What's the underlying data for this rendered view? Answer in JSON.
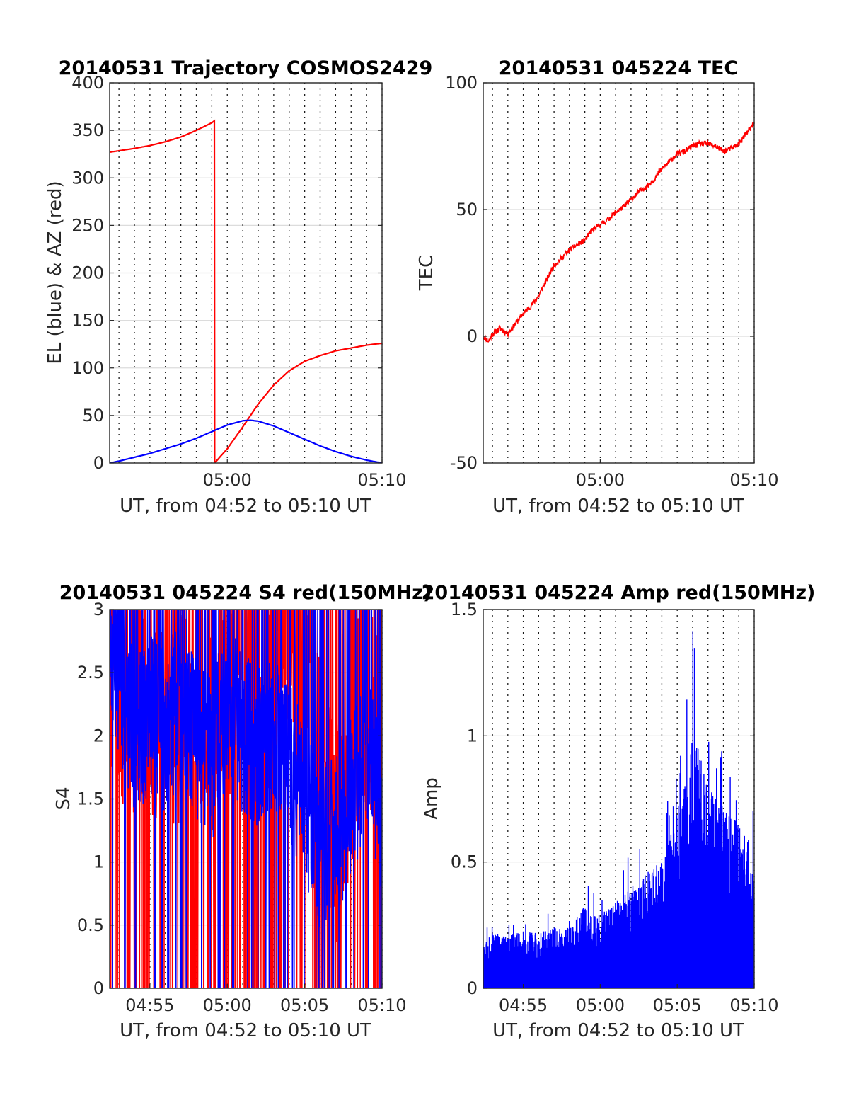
{
  "figure": {
    "x_range": [
      "04:52:24",
      "05:10:00"
    ],
    "minute_gridlines": true,
    "colors": {
      "red": "#ff0000",
      "blue": "#0000ff"
    }
  },
  "chart_data": [
    {
      "id": "trajectory",
      "type": "line",
      "title": "20140531 Trajectory COSMOS2429",
      "xlabel": "UT, from 04:52 to 05:10 UT",
      "ylabel": "EL (blue) & AZ (red)",
      "xlim": [
        "04:52:24",
        "05:10:00"
      ],
      "ylim": [
        0,
        400
      ],
      "yticks": [
        0,
        50,
        100,
        150,
        200,
        250,
        300,
        350,
        400
      ],
      "xticks": [
        "05:00",
        "05:10"
      ],
      "grid": "minor-dotted-vertical",
      "series": [
        {
          "color": "#ff0000",
          "x": [
            "04:52:24",
            "04:53:00",
            "04:54:00",
            "04:55:00",
            "04:56:00",
            "04:57:00",
            "04:58:00",
            "04:59:00",
            "04:59:10",
            "04:59:11",
            "05:00:00",
            "05:01:00",
            "05:02:00",
            "05:03:00",
            "05:04:00",
            "05:05:00",
            "05:06:00",
            "05:07:00",
            "05:08:00",
            "05:09:00",
            "05:10:00"
          ],
          "values": [
            327,
            328.5,
            331,
            334,
            338,
            343,
            350,
            358,
            360,
            0,
            15,
            38,
            62,
            82,
            97,
            107,
            113,
            118,
            121,
            124,
            126
          ]
        },
        {
          "color": "#0000ff",
          "x": [
            "04:52:24",
            "04:53:00",
            "04:54:00",
            "04:55:00",
            "04:56:00",
            "04:57:00",
            "04:58:00",
            "04:59:00",
            "05:00:00",
            "05:01:00",
            "05:01:30",
            "05:02:00",
            "05:03:00",
            "05:04:00",
            "05:05:00",
            "05:06:00",
            "05:07:00",
            "05:08:00",
            "05:09:00",
            "05:10:00"
          ],
          "values": [
            0,
            2,
            6,
            10,
            15,
            20,
            26,
            33,
            40,
            44.5,
            45,
            44,
            39,
            32,
            25,
            18,
            12,
            7,
            3,
            0
          ]
        }
      ]
    },
    {
      "id": "tec",
      "type": "line",
      "title": "20140531 045224 TEC",
      "xlabel": "UT, from 04:52 to 05:10 UT",
      "ylabel": "TEC",
      "xlim": [
        "04:52:24",
        "05:10:00"
      ],
      "ylim": [
        -50,
        100
      ],
      "yticks": [
        -50,
        0,
        50,
        100
      ],
      "xticks": [
        "05:00",
        "05:10"
      ],
      "grid": "minor-dotted-vertical",
      "series": [
        {
          "color": "#ff0000",
          "x": [
            "04:52:24",
            "04:52:45",
            "04:53:00",
            "04:53:30",
            "04:54:00",
            "04:54:30",
            "04:55:00",
            "04:55:30",
            "04:56:00",
            "04:56:30",
            "04:57:00",
            "04:57:30",
            "04:58:00",
            "04:58:30",
            "04:59:00",
            "04:59:30",
            "05:00:00",
            "05:00:30",
            "05:01:00",
            "05:01:30",
            "05:02:00",
            "05:02:30",
            "05:03:00",
            "05:03:30",
            "05:04:00",
            "05:04:30",
            "05:05:00",
            "05:05:30",
            "05:06:00",
            "05:06:30",
            "05:07:00",
            "05:07:30",
            "05:08:00",
            "05:08:30",
            "05:09:00",
            "05:09:30",
            "05:10:00"
          ],
          "values": [
            0,
            -2,
            1,
            3,
            1,
            5,
            9,
            12,
            16,
            22,
            28,
            31,
            34,
            36,
            38,
            42,
            44,
            46,
            49,
            51,
            54,
            57,
            59,
            62,
            66,
            69,
            72,
            73,
            75,
            76,
            76,
            75,
            73,
            74,
            76,
            80,
            84
          ]
        }
      ]
    },
    {
      "id": "s4",
      "type": "line",
      "title": "20140531 045224 S4 red(150MHz)",
      "xlabel": "UT, from 04:52 to 05:10 UT",
      "ylabel": "S4",
      "xlim": [
        "04:52:24",
        "05:10:00"
      ],
      "ylim": [
        0,
        3
      ],
      "yticks": [
        0,
        0.5,
        1,
        1.5,
        2,
        2.5,
        3
      ],
      "xticks": [
        "04:55",
        "05:00",
        "05:05",
        "05:10"
      ],
      "grid": "minor-dotted-vertical",
      "series": [
        {
          "color": "#ff0000",
          "x": [
            "04:52:24",
            "04:53:00",
            "04:54:00",
            "04:55:00",
            "04:56:00",
            "04:57:00",
            "04:58:00",
            "04:59:00",
            "05:00:00",
            "05:01:00",
            "05:02:00",
            "05:03:00",
            "05:04:00",
            "05:05:00",
            "05:06:00",
            "05:07:00",
            "05:08:00",
            "05:09:00",
            "05:10:00"
          ],
          "values": [
            2.6,
            2.2,
            2.0,
            2.3,
            2.1,
            2.2,
            2.5,
            2.0,
            2.3,
            2.4,
            2.2,
            2.6,
            2.8,
            2.5,
            2.2,
            1.2,
            1.8,
            2.4,
            2.0
          ]
        },
        {
          "color": "#0000ff",
          "x": [
            "04:52:24",
            "04:53:00",
            "04:54:00",
            "04:55:00",
            "04:56:00",
            "04:57:00",
            "04:58:00",
            "04:59:00",
            "05:00:00",
            "05:01:00",
            "05:02:00",
            "05:03:00",
            "05:04:00",
            "05:05:00",
            "05:06:00",
            "05:07:00",
            "05:08:00",
            "05:09:00",
            "05:10:00"
          ],
          "values": [
            2.7,
            2.5,
            2.0,
            2.2,
            2.0,
            2.3,
            2.0,
            1.8,
            2.3,
            2.0,
            1.9,
            2.1,
            1.8,
            1.5,
            1.1,
            1.2,
            1.5,
            1.9,
            1.4
          ]
        }
      ]
    },
    {
      "id": "amp",
      "type": "line",
      "title": "20140531 045224 Amp red(150MHz)",
      "xlabel": "UT, from 04:52 to 05:10 UT",
      "ylabel": "Amp",
      "xlim": [
        "04:52:24",
        "05:10:00"
      ],
      "ylim": [
        0,
        1.5
      ],
      "yticks": [
        0,
        0.5,
        1,
        1.5
      ],
      "xticks": [
        "04:55",
        "05:00",
        "05:05",
        "05:10"
      ],
      "grid": "minor-dotted-vertical",
      "series": [
        {
          "color": "#0000ff",
          "x": [
            "04:52:24",
            "04:53:00",
            "04:54:00",
            "04:55:00",
            "04:56:00",
            "04:57:00",
            "04:58:00",
            "04:59:00",
            "05:00:00",
            "05:01:00",
            "05:02:00",
            "05:03:00",
            "05:04:00",
            "05:05:00",
            "05:06:00",
            "05:07:00",
            "05:08:00",
            "05:09:00",
            "05:10:00"
          ],
          "values": [
            0.18,
            0.22,
            0.21,
            0.23,
            0.22,
            0.24,
            0.24,
            0.33,
            0.29,
            0.34,
            0.4,
            0.46,
            0.52,
            0.7,
            1.05,
            0.8,
            0.75,
            0.65,
            0.55
          ]
        }
      ]
    }
  ]
}
